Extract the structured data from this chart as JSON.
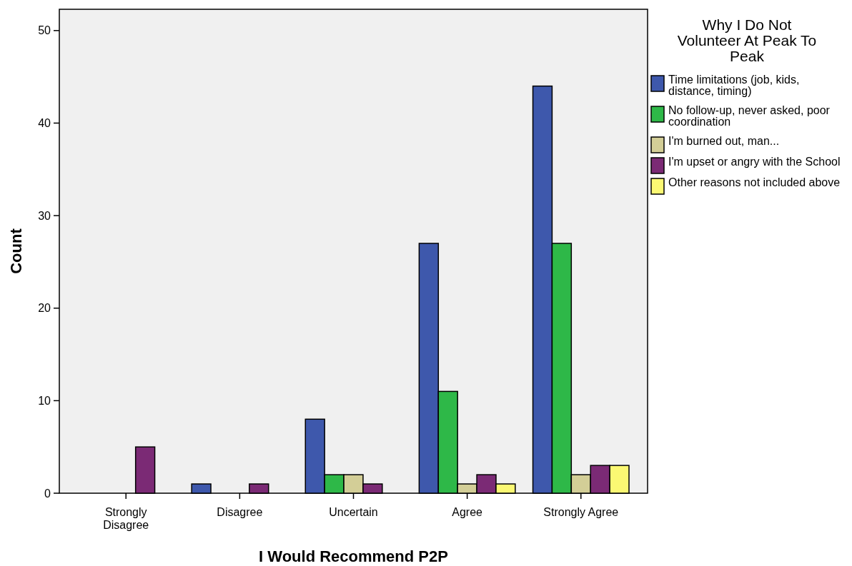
{
  "chart_data": {
    "type": "bar",
    "xlabel": "I Would Recommend P2P",
    "ylabel": "Count",
    "legend_title": "Why I Do Not Volunteer At Peak To Peak",
    "categories": [
      "Strongly Disagree",
      "Disagree",
      "Uncertain",
      "Agree",
      "Strongly Agree"
    ],
    "series": [
      {
        "name": "Time limitations (job, kids, distance, timing)",
        "color": "#3e58ac",
        "values": [
          0,
          1,
          8,
          27,
          44
        ]
      },
      {
        "name": "No follow-up, never asked, poor coordination",
        "color": "#2eb848",
        "values": [
          0,
          0,
          2,
          11,
          27
        ]
      },
      {
        "name": "I'm burned out, man...",
        "color": "#d3ce97",
        "values": [
          0,
          0,
          2,
          1,
          2
        ]
      },
      {
        "name": "I'm upset or angry with the School",
        "color": "#7b2a75",
        "values": [
          5,
          1,
          1,
          2,
          3
        ]
      },
      {
        "name": "Other reasons not included above",
        "color": "#fbf873",
        "values": [
          0,
          0,
          0,
          1,
          3
        ]
      }
    ],
    "ylim": [
      0,
      52.3
    ],
    "yticks": [
      0,
      10,
      20,
      30,
      40,
      50
    ],
    "grid": false,
    "legend": "right"
  }
}
